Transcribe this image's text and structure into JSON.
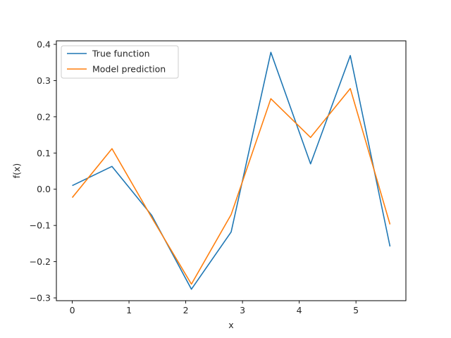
{
  "chart_data": {
    "type": "line",
    "title": "",
    "xlabel": "x",
    "ylabel": "f(x)",
    "x": [
      0,
      0.7,
      1.4,
      2.1,
      2.8,
      3.5,
      4.2,
      4.9,
      5.6
    ],
    "series": [
      {
        "name": "True function",
        "color": "#1f77b4",
        "values": [
          0.01,
          0.063,
          -0.072,
          -0.276,
          -0.118,
          0.378,
          0.07,
          0.369,
          -0.158
        ]
      },
      {
        "name": "Model prediction",
        "color": "#ff7f0e",
        "values": [
          -0.023,
          0.112,
          -0.078,
          -0.262,
          -0.07,
          0.25,
          0.143,
          0.278,
          -0.097
        ]
      }
    ],
    "xlim": [
      -0.28,
      5.88
    ],
    "ylim": [
      -0.3077,
      0.4097
    ],
    "xticks": [
      0,
      1,
      2,
      3,
      4,
      5
    ],
    "xtick_labels": [
      "0",
      "1",
      "2",
      "3",
      "4",
      "5"
    ],
    "yticks": [
      -0.3,
      -0.2,
      -0.1,
      0.0,
      0.1,
      0.2,
      0.3,
      0.4
    ],
    "ytick_labels": [
      "−0.3",
      "−0.2",
      "−0.1",
      "0.0",
      "0.1",
      "0.2",
      "0.3",
      "0.4"
    ],
    "grid": false,
    "legend_position": "upper-left"
  }
}
